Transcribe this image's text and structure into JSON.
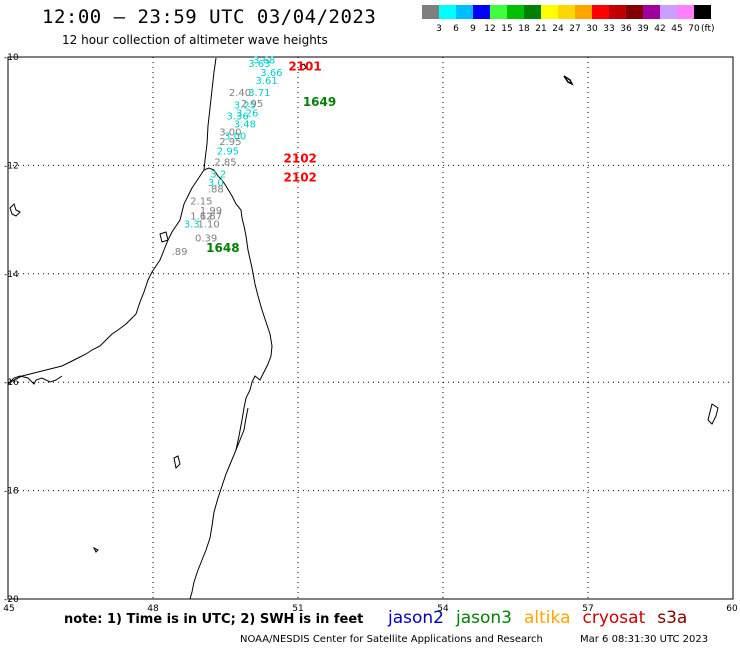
{
  "header": {
    "title": "12:00 – 23:59 UTC 03/04/2023",
    "subtitle": "12 hour collection of altimeter wave heights"
  },
  "colorbar": {
    "unit": "(ft)",
    "bins": [
      {
        "label": "3",
        "color": "#7f7f7f"
      },
      {
        "label": "6",
        "color": "#00ffff"
      },
      {
        "label": "9",
        "color": "#00bfff"
      },
      {
        "label": "12",
        "color": "#0000ff"
      },
      {
        "label": "15",
        "color": "#40ff40"
      },
      {
        "label": "18",
        "color": "#00c000"
      },
      {
        "label": "21",
        "color": "#008000"
      },
      {
        "label": "24",
        "color": "#ffff00"
      },
      {
        "label": "27",
        "color": "#ffd700"
      },
      {
        "label": "30",
        "color": "#ffa500"
      },
      {
        "label": "33",
        "color": "#ff0000"
      },
      {
        "label": "36",
        "color": "#c00000"
      },
      {
        "label": "39",
        "color": "#800000"
      },
      {
        "label": "42",
        "color": "#a000a0"
      },
      {
        "label": "45",
        "color": "#c8a0ff"
      },
      {
        "label": "70",
        "color": "#ff80ff"
      },
      {
        "label": "",
        "color": "#000000"
      }
    ]
  },
  "axes": {
    "lon_ticks": [
      "45",
      "48",
      "51",
      "54",
      "57",
      "60"
    ],
    "lat_ticks": [
      "-10",
      "-12",
      "-14",
      "-16",
      "-18",
      "-20"
    ]
  },
  "passes": [
    {
      "label": "2101",
      "color": "#ff0000",
      "lon": 50.8,
      "lat": -10.25
    },
    {
      "label": "1649",
      "color": "#008000",
      "lon": 51.1,
      "lat": -10.9
    },
    {
      "label": "2102",
      "color": "#ff0000",
      "lon": 50.7,
      "lat": -11.95
    },
    {
      "label": "2102",
      "color": "#ff0000",
      "lon": 50.7,
      "lat": -12.3
    },
    {
      "label": "1648",
      "color": "#008000",
      "lon": 49.1,
      "lat": -13.6
    }
  ],
  "wave_labels": [
    {
      "text": "3.63",
      "color": "#00cccc",
      "lon": 50.2,
      "lat": -10.18
    },
    {
      "text": "3.68",
      "color": "#00cccc",
      "lon": 50.3,
      "lat": -10.12
    },
    {
      "text": "3.66",
      "color": "#00cccc",
      "lon": 50.45,
      "lat": -10.35
    },
    {
      "text": "3.61",
      "color": "#00cccc",
      "lon": 50.35,
      "lat": -10.5
    },
    {
      "text": "2.40",
      "color": "#7f7f7f",
      "lon": 49.8,
      "lat": -10.72
    },
    {
      "text": "3.71",
      "color": "#00cccc",
      "lon": 50.2,
      "lat": -10.72
    },
    {
      "text": "3.25",
      "color": "#00cccc",
      "lon": 49.9,
      "lat": -10.95
    },
    {
      "text": "2.95",
      "color": "#7f7f7f",
      "lon": 50.05,
      "lat": -10.92
    },
    {
      "text": "3.26",
      "color": "#00cccc",
      "lon": 49.95,
      "lat": -11.1
    },
    {
      "text": "3.36",
      "color": "#00cccc",
      "lon": 49.75,
      "lat": -11.15
    },
    {
      "text": "3.48",
      "color": "#00cccc",
      "lon": 49.9,
      "lat": -11.3
    },
    {
      "text": "3.00",
      "color": "#7f7f7f",
      "lon": 49.6,
      "lat": -11.45
    },
    {
      "text": "3.00",
      "color": "#00cccc",
      "lon": 49.7,
      "lat": -11.52
    },
    {
      "text": "2.95",
      "color": "#7f7f7f",
      "lon": 49.6,
      "lat": -11.62
    },
    {
      "text": "2.95",
      "color": "#00cccc",
      "lon": 49.55,
      "lat": -11.8
    },
    {
      "text": "2.85",
      "color": "#7f7f7f",
      "lon": 49.5,
      "lat": -12.0
    },
    {
      "text": "3.2",
      "color": "#00cccc",
      "lon": 49.35,
      "lat": -12.22
    },
    {
      "text": "3.0",
      "color": "#00cccc",
      "lon": 49.3,
      "lat": -12.38
    },
    {
      "text": ".88",
      "color": "#7f7f7f",
      "lon": 49.3,
      "lat": -12.5
    },
    {
      "text": "2.15",
      "color": "#7f7f7f",
      "lon": 49.0,
      "lat": -12.72
    },
    {
      "text": "1.99",
      "color": "#7f7f7f",
      "lon": 49.2,
      "lat": -12.9
    },
    {
      "text": "1.62",
      "color": "#7f7f7f",
      "lon": 49.0,
      "lat": -13.0
    },
    {
      "text": "1.87",
      "color": "#7f7f7f",
      "lon": 49.2,
      "lat": -13.0
    },
    {
      "text": "3.3",
      "color": "#00cccc",
      "lon": 48.8,
      "lat": -13.15
    },
    {
      "text": "1.10",
      "color": "#7f7f7f",
      "lon": 49.15,
      "lat": -13.15
    },
    {
      "text": "0.39",
      "color": "#7f7f7f",
      "lon": 49.1,
      "lat": -13.4
    },
    {
      "text": ".89",
      "color": "#7f7f7f",
      "lon": 48.55,
      "lat": -13.65
    }
  ],
  "footer": {
    "note": "note: 1) Time is in UTC; 2) SWH is in feet",
    "satellites": [
      {
        "name": "jason2",
        "color": "#0000c8"
      },
      {
        "name": "jason3",
        "color": "#008000"
      },
      {
        "name": "altika",
        "color": "#ffa500"
      },
      {
        "name": "cryosat",
        "color": "#c80000"
      },
      {
        "name": "s3a",
        "color": "#800000"
      }
    ],
    "credit": "NOAA/NESDIS Center for Satellite Applications and Research",
    "timestamp": "Mar  6 08:31:30 UTC 2023"
  }
}
